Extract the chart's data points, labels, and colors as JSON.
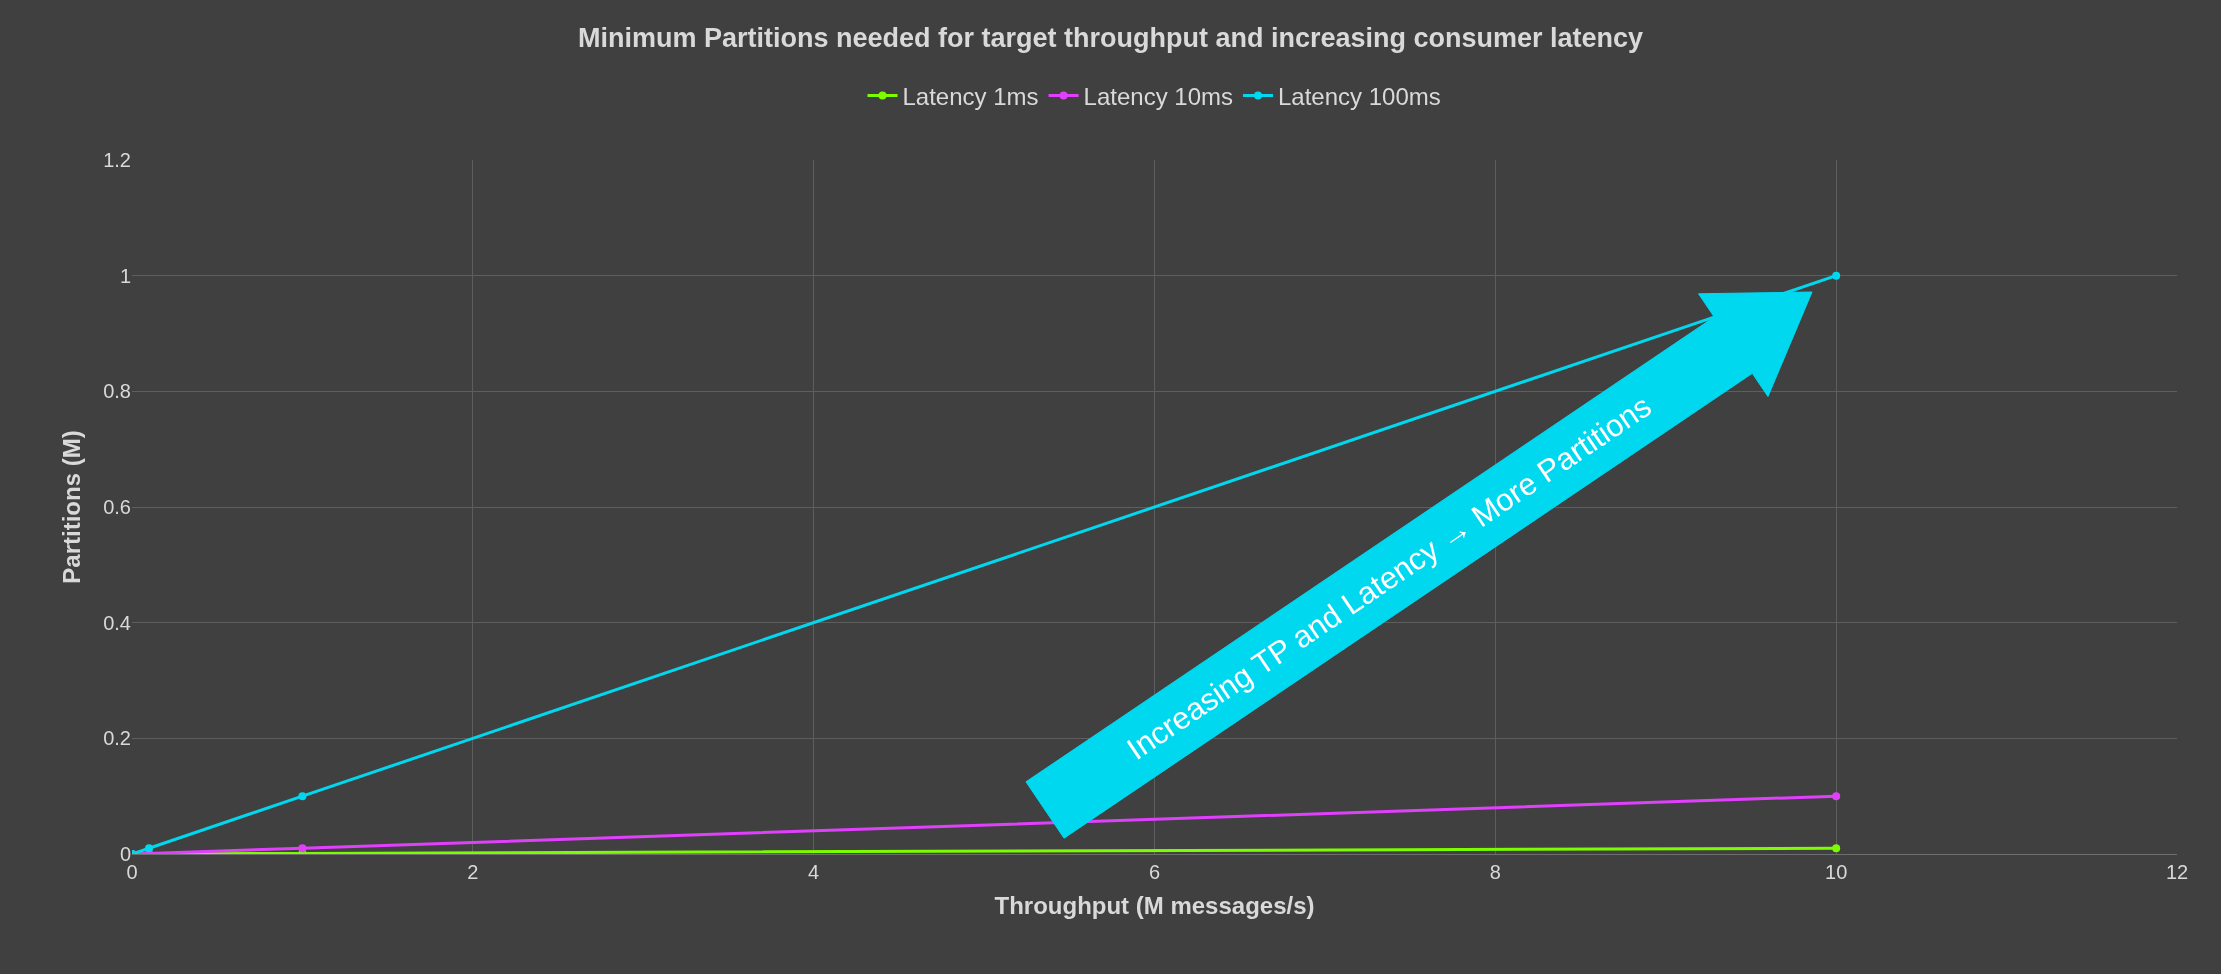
{
  "chart_data": {
    "type": "line",
    "title": "Minimum Partitions needed for target throughput and increasing consumer latency",
    "xlabel": "Throughput (M messages/s)",
    "ylabel": "Partitions (M)",
    "series": [
      {
        "name": "Latency 1ms",
        "color": "#7cfc00",
        "x": [
          0,
          0.1,
          1,
          10
        ],
        "values": [
          0,
          0,
          0.001,
          0.01
        ]
      },
      {
        "name": "Latency 10ms",
        "color": "#e040fb",
        "x": [
          0,
          0.1,
          1,
          10
        ],
        "values": [
          0,
          0.001,
          0.01,
          0.1
        ]
      },
      {
        "name": "Latency 100ms",
        "color": "#00d8f0",
        "x": [
          0,
          0.1,
          1,
          10
        ],
        "values": [
          0,
          0.01,
          0.1,
          1
        ]
      }
    ],
    "xlim": [
      0,
      12
    ],
    "xticks": [
      0,
      2,
      4,
      6,
      8,
      10,
      12
    ],
    "ylim": [
      0,
      1.2
    ],
    "yticks": [
      0,
      0.2,
      0.4,
      0.6,
      0.8,
      1,
      1.2
    ],
    "grid": true,
    "legend": "top",
    "marker": "circle",
    "line_style": "solid",
    "annotations": [
      "Increasing TP and Latency → More Partitions"
    ]
  }
}
